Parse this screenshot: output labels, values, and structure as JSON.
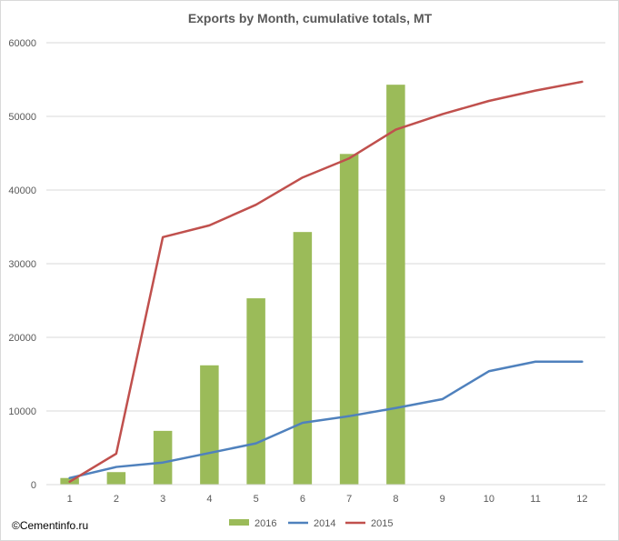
{
  "chart_data": {
    "type": "bar+line",
    "title": "Exports by Month, cumulative totals, MT",
    "xlabel": "",
    "ylabel": "",
    "categories": [
      "1",
      "2",
      "3",
      "4",
      "5",
      "6",
      "7",
      "8",
      "9",
      "10",
      "11",
      "12"
    ],
    "ylim": [
      0,
      60000
    ],
    "yticks": [
      "0",
      "10000",
      "20000",
      "30000",
      "40000",
      "50000",
      "60000"
    ],
    "grid": true,
    "legend_position": "bottom",
    "series": [
      {
        "name": "2016",
        "type": "bar",
        "color": "#9bbb59",
        "values": [
          900,
          1700,
          7300,
          16200,
          25300,
          34300,
          44900,
          54300,
          null,
          null,
          null,
          null
        ]
      },
      {
        "name": "2014",
        "type": "line",
        "color": "#4f81bd",
        "values": [
          900,
          2400,
          3000,
          4300,
          5600,
          8400,
          9300,
          10400,
          11600,
          15400,
          16700,
          16700
        ]
      },
      {
        "name": "2015",
        "type": "line",
        "color": "#c0504d",
        "values": [
          400,
          4200,
          33600,
          35200,
          38000,
          41700,
          44300,
          48200,
          50300,
          52100,
          53500,
          54700
        ]
      }
    ]
  },
  "credit": "©Cementinfo.ru"
}
